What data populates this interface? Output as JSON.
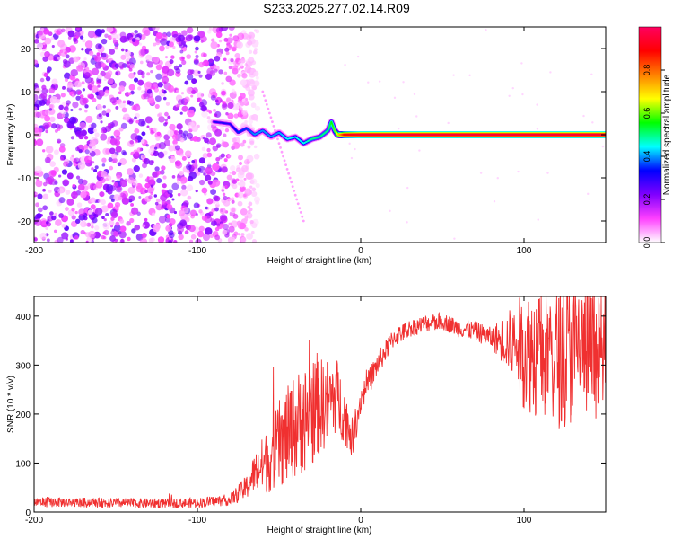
{
  "title": "S233.2025.277.02.14.R09",
  "chart_data": [
    {
      "type": "heatmap",
      "title": "S233.2025.277.02.14.R09",
      "xlabel": "Height of straight line (km)",
      "ylabel": "Frequency (Hz)",
      "xlim": [
        -200,
        150
      ],
      "ylim": [
        -25,
        25
      ],
      "xticks": [
        -200,
        -100,
        0,
        100
      ],
      "yticks": [
        -20,
        -10,
        0,
        10,
        20
      ],
      "grid": false,
      "colorbar": {
        "label": "Normalized spectral amplitude",
        "range": [
          0,
          1
        ],
        "ticks": [
          0.0,
          0.2,
          0.4,
          0.6,
          0.8
        ],
        "tick_labels": [
          "0.0",
          "0.2",
          "0.4",
          "0.6",
          "0.8"
        ],
        "colors": [
          "#ffffff",
          "#ff40ff",
          "#8000ff",
          "#0000ff",
          "#00ffff",
          "#00ff00",
          "#ffff00",
          "#ff8000",
          "#ff0000",
          "#ff0060"
        ]
      },
      "noise_region": {
        "x_range": [
          -200,
          -75
        ],
        "amplitude": 0.15
      },
      "trace": {
        "x": [
          -90,
          -80,
          -75,
          -70,
          -65,
          -60,
          -55,
          -50,
          -45,
          -40,
          -35,
          -30,
          -25,
          -20,
          -18,
          -16,
          -14,
          -12,
          -10,
          0,
          20,
          40,
          60,
          80,
          100,
          120,
          150
        ],
        "y": [
          3.0,
          2.5,
          0.5,
          1.5,
          0.0,
          1.0,
          -0.5,
          0.5,
          -1.0,
          -0.5,
          -2.0,
          -1.0,
          -0.5,
          1.0,
          3.0,
          1.0,
          0.0,
          0.0,
          0.0,
          0.0,
          0.0,
          0.0,
          0.0,
          0.0,
          0.0,
          0.0,
          0.0
        ],
        "amplitude": [
          0.3,
          0.3,
          0.35,
          0.35,
          0.4,
          0.4,
          0.4,
          0.4,
          0.45,
          0.45,
          0.45,
          0.5,
          0.5,
          0.5,
          0.55,
          0.6,
          0.7,
          0.8,
          0.9,
          0.95,
          0.95,
          0.95,
          0.95,
          0.95,
          0.95,
          0.95,
          0.95
        ]
      },
      "streak": {
        "x": [
          -60,
          -35
        ],
        "y": [
          10,
          -20
        ]
      }
    },
    {
      "type": "line",
      "xlabel": "Height of straight line (km)",
      "ylabel": "SNR (10 * v/v)",
      "xlim": [
        -200,
        150
      ],
      "ylim": [
        0,
        440
      ],
      "xticks": [
        -200,
        -100,
        0,
        100
      ],
      "yticks": [
        0,
        100,
        200,
        300,
        400
      ],
      "grid": false,
      "series": [
        {
          "name": "SNR",
          "color": "#f03030",
          "x": [
            -200,
            -180,
            -160,
            -140,
            -120,
            -100,
            -80,
            -70,
            -65,
            -60,
            -55,
            -50,
            -45,
            -40,
            -35,
            -30,
            -25,
            -20,
            -15,
            -10,
            -5,
            0,
            10,
            20,
            30,
            40,
            50,
            60,
            70,
            80,
            90,
            100,
            110,
            120,
            130,
            140,
            150
          ],
          "values": [
            20,
            20,
            19,
            18,
            18,
            19,
            25,
            50,
            80,
            95,
            110,
            140,
            155,
            175,
            190,
            205,
            215,
            225,
            240,
            200,
            150,
            230,
            300,
            355,
            375,
            385,
            390,
            375,
            370,
            355,
            350,
            330,
            325,
            320,
            325,
            330,
            310
          ],
          "noise_amplitude": [
            10,
            10,
            10,
            10,
            10,
            10,
            12,
            25,
            40,
            60,
            70,
            90,
            100,
            110,
            110,
            110,
            100,
            90,
            80,
            60,
            40,
            30,
            25,
            20,
            18,
            18,
            18,
            18,
            20,
            22,
            60,
            120,
            140,
            150,
            150,
            140,
            120
          ]
        }
      ]
    }
  ]
}
